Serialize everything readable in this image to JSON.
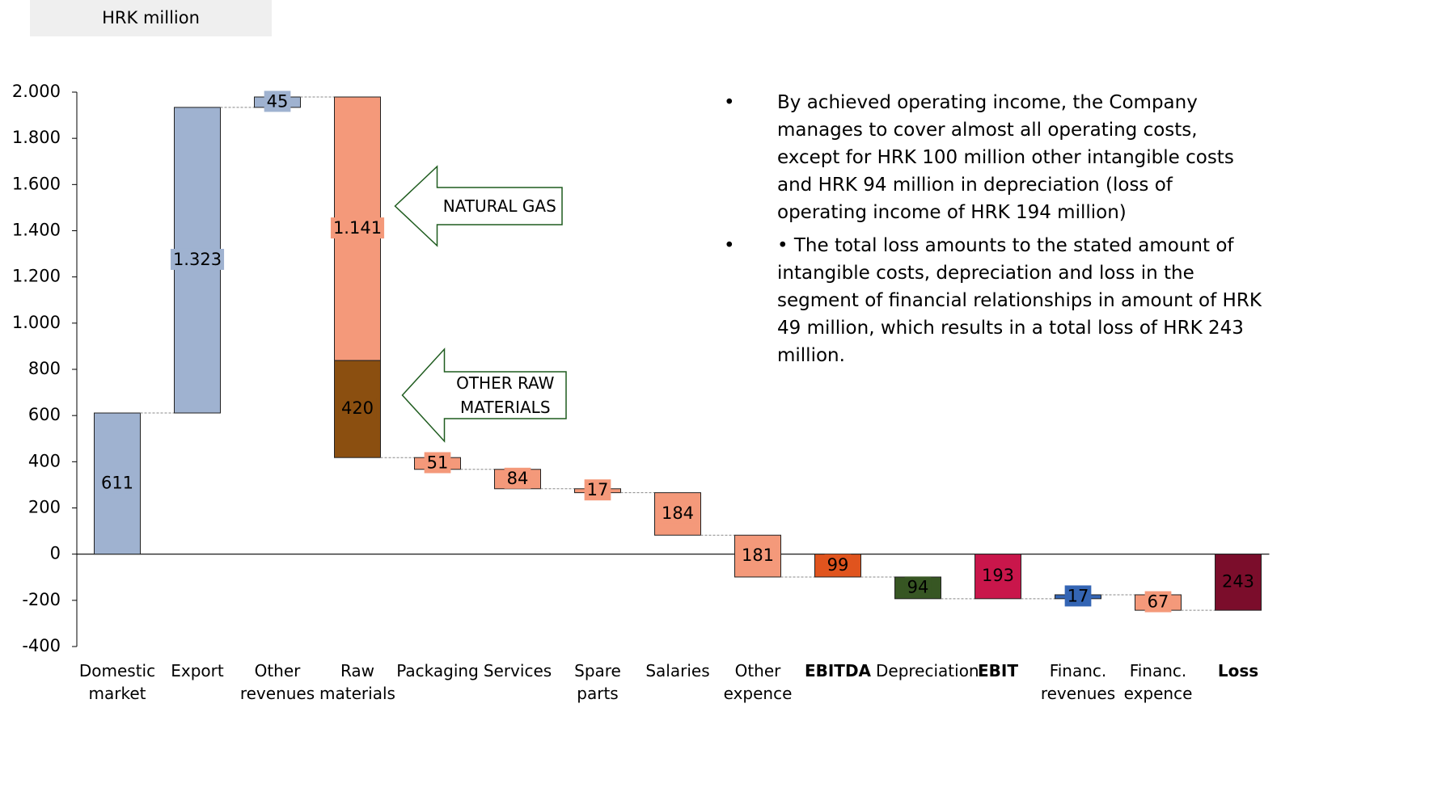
{
  "chart_data": {
    "type": "waterfall",
    "unit_label": "HRK million",
    "categories": [
      "Domestic market",
      "Export",
      "Other revenues",
      "Raw materials",
      "Packaging",
      "Services",
      "Spare parts",
      "Salaries",
      "Other expence",
      "EBITDA",
      "Depreciation",
      "EBIT",
      "Financ. revenues",
      "Financ. expence",
      "Loss"
    ],
    "values": [
      611,
      1323,
      45,
      [
        -1141,
        -420
      ],
      -51,
      -84,
      -17,
      -184,
      -181,
      -99,
      -94,
      -193,
      17,
      -67,
      -243
    ],
    "value_labels": [
      "611",
      "1.323",
      "45",
      [
        "1.141",
        "420"
      ],
      "51",
      "84",
      "17",
      "184",
      "181",
      "99",
      "94",
      "193",
      "17",
      "67",
      "243"
    ],
    "measure": [
      "relative",
      "relative",
      "relative",
      "relative",
      "relative",
      "relative",
      "relative",
      "relative",
      "relative",
      "total",
      "relative",
      "total",
      "relative",
      "relative",
      "total"
    ],
    "colors": [
      "#9fb2d0",
      "#9fb2d0",
      "#9fb2d0",
      [
        "#f4997a",
        "#8b4f10"
      ],
      "#f4997a",
      "#f4997a",
      "#f4997a",
      "#f4997a",
      "#f4997a",
      "#e0541e",
      "#375623",
      "#c9164b",
      "#3465b4",
      "#f4997a",
      "#7b0d2b"
    ],
    "annotations": [
      "NATURAL GAS",
      "OTHER RAW MATERIALS"
    ],
    "ylim": [
      -400,
      2000
    ],
    "yticks": [
      {
        "value": 2000,
        "label": "2.000"
      },
      {
        "value": 1800,
        "label": "1.800"
      },
      {
        "value": 1600,
        "label": "1.600"
      },
      {
        "value": 1400,
        "label": "1.400"
      },
      {
        "value": 1200,
        "label": "1.200"
      },
      {
        "value": 1000,
        "label": "1.000"
      },
      800,
      600,
      400,
      200,
      0,
      -200,
      -400
    ],
    "notes": [
      "By achieved operating income, the Company manages to cover almost all operating costs, except for HRK 100 million other intangible costs and HRK 94 million in depreciation (loss of operating income of HRK 194 million)",
      "• The total loss amounts to the stated amount of intangible costs, depreciation and loss in the segment of financial relationships in amount of HRK 49 million, which results in a total loss of HRK 243 million."
    ]
  }
}
